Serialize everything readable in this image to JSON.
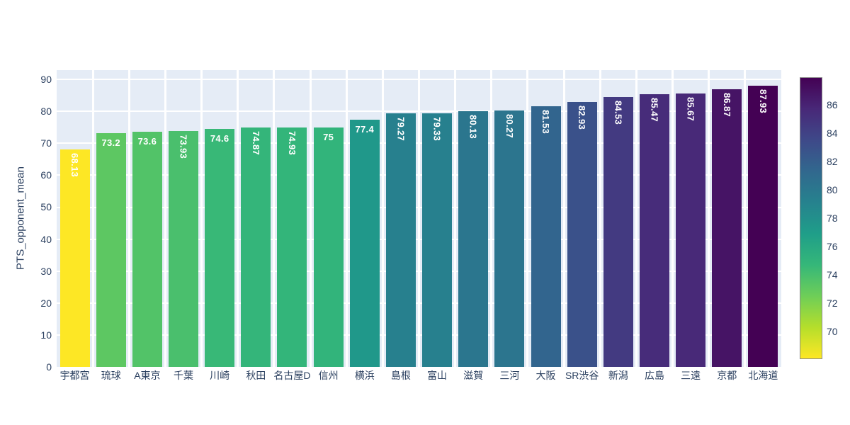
{
  "chart_data": {
    "type": "bar",
    "title": "",
    "xlabel": "",
    "ylabel": "PTS_opponent_mean",
    "categories": [
      "宇都宮",
      "琉球",
      "A東京",
      "千葉",
      "川崎",
      "秋田",
      "名古屋D",
      "信州",
      "横浜",
      "島根",
      "富山",
      "滋賀",
      "三河",
      "大阪",
      "SR渋谷",
      "新潟",
      "広島",
      "三遠",
      "京都",
      "北海道"
    ],
    "values": [
      68.13,
      73.2,
      73.6,
      73.93,
      74.6,
      74.87,
      74.93,
      75,
      77.4,
      79.27,
      79.33,
      80.13,
      80.27,
      81.53,
      82.93,
      84.53,
      85.47,
      85.67,
      86.87,
      87.93
    ],
    "bar_labels": [
      "68.13",
      "73.2",
      "73.6",
      "73.93",
      "74.6",
      "74.87",
      "74.93",
      "75",
      "77.4",
      "79.27",
      "79.33",
      "80.13",
      "80.27",
      "81.53",
      "82.93",
      "84.53",
      "85.47",
      "85.67",
      "86.87",
      "87.93"
    ],
    "ylim": [
      0,
      92.9
    ],
    "yticks": [
      0,
      10,
      20,
      30,
      40,
      50,
      60,
      70,
      80,
      90
    ],
    "grid": true,
    "legend_position": "none",
    "colorscale": {
      "name": "viridis_r",
      "stops_low_to_high": [
        "#fde725",
        "#b5de2b",
        "#6ece58",
        "#35b779",
        "#1f9e89",
        "#26828e",
        "#31688e",
        "#3e4989",
        "#482878",
        "#440154"
      ]
    },
    "colorbar": {
      "min": 68.13,
      "max": 87.93,
      "ticks": [
        70,
        72,
        74,
        76,
        78,
        80,
        82,
        84,
        86
      ]
    }
  },
  "colors": {
    "figure_bg": "#ffffff",
    "plot_bg": "#e5ecf6",
    "grid": "#ffffff",
    "tick_label": "#2a3f5f",
    "bar_label": "#ffffff",
    "colorbar_border": "#8c8c8c"
  }
}
